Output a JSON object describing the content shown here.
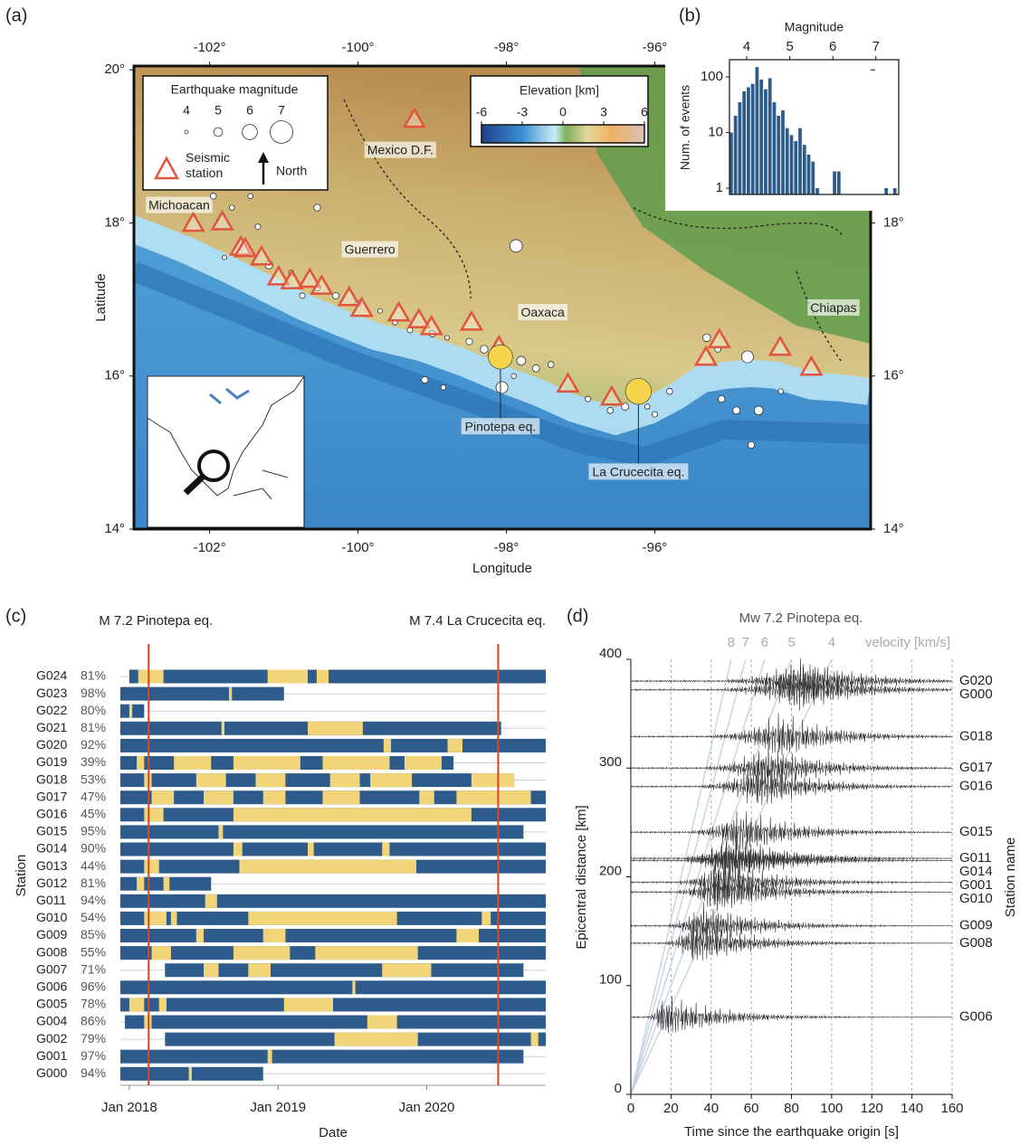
{
  "chart_data": [
    {
      "type": "map",
      "panel_label": "(a)",
      "xlabel": "Longitude",
      "ylabel": "Latitude",
      "xlim": [
        -103.02,
        -93.09
      ],
      "ylim": [
        14,
        20.05
      ],
      "xticks": [
        {
          "value": -102,
          "label": "-102°"
        },
        {
          "value": -100,
          "label": "-100°"
        },
        {
          "value": -98,
          "label": "-98°"
        },
        {
          "value": -96,
          "label": "-96°"
        }
      ],
      "yticks": [
        {
          "value": 14,
          "label": "14°"
        },
        {
          "value": 16,
          "label": "16°"
        },
        {
          "value": 18,
          "label": "18°"
        },
        {
          "value": 20,
          "label": "20°"
        }
      ],
      "stations": {
        "name": "Seismic station",
        "color": "#e0553b",
        "lon": [
          -99.24,
          -102.22,
          -101.83,
          -101.58,
          -101.52,
          -101.3,
          -101.07,
          -100.89,
          -100.65,
          -100.49,
          -100.12,
          -99.95,
          -99.45,
          -99.18,
          -99.01,
          -98.47,
          -98.1,
          -97.17,
          -96.58,
          -95.31,
          -95.13,
          -94.31,
          -93.89
        ],
        "lat": [
          19.34,
          17.98,
          18.0,
          17.67,
          17.65,
          17.54,
          17.28,
          17.23,
          17.25,
          17.16,
          17.01,
          16.87,
          16.81,
          16.72,
          16.63,
          16.69,
          16.37,
          15.88,
          15.71,
          16.23,
          16.46,
          16.36,
          16.1
        ]
      },
      "earthquakes": {
        "lon": [
          -101.95,
          -101.7,
          -101.35,
          -101.6,
          -101.8,
          -101.2,
          -100.9,
          -100.55,
          -100.3,
          -100.0,
          -99.7,
          -99.5,
          -99.3,
          -99.0,
          -98.8,
          -98.5,
          -98.3,
          -98.06,
          -97.8,
          -97.6,
          -97.4,
          -97.9,
          -98.85,
          -99.1,
          -96.9,
          -96.6,
          -96.4,
          -96.1,
          -95.8,
          -96.0,
          -95.3,
          -95.15,
          -94.75,
          -95.1,
          -94.9,
          -94.6,
          -94.3,
          -94.7,
          -97.87,
          -100.55,
          -101.45,
          -100.75
        ],
        "lat": [
          18.35,
          18.2,
          17.95,
          17.6,
          17.55,
          17.45,
          17.35,
          17.15,
          17.05,
          16.95,
          16.85,
          16.7,
          16.6,
          16.55,
          16.5,
          16.45,
          16.35,
          15.85,
          16.2,
          16.1,
          16.15,
          16.0,
          15.85,
          15.95,
          15.7,
          15.55,
          15.6,
          15.6,
          15.8,
          15.5,
          16.5,
          16.35,
          16.25,
          15.7,
          15.55,
          15.55,
          15.8,
          15.1,
          17.7,
          18.2,
          18.35,
          17.05
        ],
        "mag": [
          4.5,
          4.3,
          4.4,
          4.6,
          4.2,
          4.8,
          4.3,
          4.4,
          4.6,
          4.5,
          4.2,
          4.3,
          4.4,
          4.5,
          4.2,
          4.6,
          4.8,
          5.5,
          5.0,
          4.7,
          4.5,
          4.3,
          4.3,
          4.6,
          4.4,
          4.5,
          4.7,
          4.3,
          4.5,
          4.4,
          4.8,
          4.5,
          5.5,
          4.6,
          4.7,
          5.0,
          4.3,
          4.6,
          5.6,
          4.6,
          4.3,
          4.4
        ]
      },
      "mainshocks": [
        {
          "name": "Pinotepa eq.",
          "lon": -98.08,
          "lat": 16.25,
          "mag": 7.2,
          "color": "#f7d54a"
        },
        {
          "name": "La Crucecita eq.",
          "lon": -96.22,
          "lat": 15.8,
          "mag": 7.4,
          "color": "#f7d54a"
        }
      ],
      "places": [
        {
          "name": "Michoacan",
          "lon": -102.41,
          "lat": 18.22
        },
        {
          "name": "Guerrero",
          "lon": -99.84,
          "lat": 17.64
        },
        {
          "name": "Oaxaca",
          "lon": -97.51,
          "lat": 16.82
        },
        {
          "name": "Chiapas",
          "lon": -93.59,
          "lat": 16.88
        },
        {
          "name": "Mexico D.F.",
          "lon": -99.43,
          "lat": 18.94
        }
      ],
      "size_legend": {
        "title": "Earthquake magnitude",
        "values": [
          4,
          5,
          6,
          7
        ]
      },
      "north_label": "North",
      "colorbar": {
        "title": "Elevation [km]",
        "lim": [
          -6,
          6
        ],
        "ticks": [
          -6,
          -3,
          0,
          3,
          6
        ]
      }
    },
    {
      "type": "histogram",
      "panel_label": "(b)",
      "xlabel": "Magnitude",
      "ylabel": "Num. of events",
      "color": "#2c5b8c",
      "bins": [
        3.6,
        3.7,
        3.8,
        3.9,
        4.0,
        4.1,
        4.2,
        4.3,
        4.4,
        4.5,
        4.6,
        4.7,
        4.8,
        4.9,
        5.0,
        5.1,
        5.2,
        5.3,
        5.4,
        5.5,
        5.6,
        5.7,
        5.8,
        5.9,
        6.0,
        6.1,
        6.2,
        6.3,
        6.4,
        6.5,
        6.6,
        6.7,
        6.8,
        6.9,
        7.0,
        7.1,
        7.2,
        7.3,
        7.4,
        7.5
      ],
      "counts": [
        10,
        20,
        35,
        55,
        65,
        75,
        150,
        90,
        60,
        95,
        35,
        20,
        25,
        12,
        9,
        7,
        12,
        6,
        4,
        3,
        1,
        0,
        0,
        0,
        2,
        2,
        0,
        0,
        0,
        0,
        0,
        0,
        0,
        0,
        0,
        0,
        1,
        0,
        1
      ],
      "xlim": [
        3.6,
        7.53
      ],
      "xticks": [
        4,
        5,
        6,
        7
      ],
      "ylim": [
        0.77,
        204
      ],
      "yticks": [
        1,
        10,
        100
      ],
      "log_y": true
    },
    {
      "type": "timeline",
      "panel_label": "(c)",
      "xlabel": "Date",
      "ylabel": "Station",
      "color_available": "#2c5b8c",
      "color_gap": "#f2d479",
      "xlim": [
        2017.94,
        2020.8
      ],
      "xticks": [
        {
          "value": 2018,
          "label": "Jan 2018"
        },
        {
          "value": 2019,
          "label": "Jan 2019"
        },
        {
          "value": 2020,
          "label": "Jan 2020"
        }
      ],
      "events": [
        {
          "label": "M 7.2 Pinotepa eq.",
          "x": 2018.13,
          "color": "#d9472b"
        },
        {
          "label": "M 7.4 La Crucecita eq.",
          "x": 2020.48,
          "color": "#d9472b"
        }
      ],
      "rows": [
        {
          "name": "G024",
          "percent": 81,
          "percent_label": "81%",
          "start": 2018.0,
          "end": 2020.8,
          "gaps": [
            [
              2018.06,
              2018.23
            ],
            [
              2018.93,
              2019.2
            ],
            [
              2019.26,
              2019.34
            ]
          ]
        },
        {
          "name": "G023",
          "percent": 98,
          "percent_label": "98%",
          "start": 2017.94,
          "end": 2019.04,
          "gaps": [
            [
              2018.67,
              2018.69
            ]
          ]
        },
        {
          "name": "G022",
          "percent": 80,
          "percent_label": "80%",
          "start": 2017.94,
          "end": 2018.1,
          "gaps": [
            [
              2018.0,
              2018.02
            ]
          ]
        },
        {
          "name": "G021",
          "percent": 81,
          "percent_label": "81%",
          "start": 2017.94,
          "end": 2020.5,
          "gaps": [
            [
              2018.62,
              2018.64
            ],
            [
              2019.2,
              2019.57
            ]
          ]
        },
        {
          "name": "G020",
          "percent": 92,
          "percent_label": "92%",
          "start": 2017.94,
          "end": 2020.8,
          "gaps": [
            [
              2019.71,
              2019.76
            ],
            [
              2020.14,
              2020.24
            ]
          ]
        },
        {
          "name": "G019",
          "percent": 39,
          "percent_label": "39%",
          "start": 2017.94,
          "end": 2020.18,
          "gaps": [
            [
              2018.05,
              2018.1
            ],
            [
              2018.3,
              2018.55
            ],
            [
              2018.7,
              2019.15
            ],
            [
              2019.3,
              2019.75
            ],
            [
              2019.85,
              2020.1
            ]
          ]
        },
        {
          "name": "G018",
          "percent": 53,
          "percent_label": "53%",
          "start": 2017.94,
          "end": 2020.59,
          "gaps": [
            [
              2018.1,
              2018.15
            ],
            [
              2018.45,
              2018.65
            ],
            [
              2018.85,
              2019.05
            ],
            [
              2019.35,
              2019.55
            ],
            [
              2019.62,
              2019.9
            ],
            [
              2020.3,
              2020.59
            ]
          ]
        },
        {
          "name": "G017",
          "percent": 47,
          "percent_label": "47%",
          "start": 2017.94,
          "end": 2020.8,
          "gaps": [
            [
              2018.15,
              2018.3
            ],
            [
              2018.5,
              2018.7
            ],
            [
              2018.9,
              2019.05
            ],
            [
              2019.3,
              2019.55
            ],
            [
              2019.95,
              2020.05
            ],
            [
              2020.2,
              2020.7
            ]
          ]
        },
        {
          "name": "G016",
          "percent": 45,
          "percent_label": "45%",
          "start": 2017.94,
          "end": 2020.8,
          "gaps": [
            [
              2018.1,
              2018.23
            ],
            [
              2018.7,
              2020.3
            ]
          ]
        },
        {
          "name": "G015",
          "percent": 95,
          "percent_label": "95%",
          "start": 2017.94,
          "end": 2020.65,
          "gaps": [
            [
              2018.6,
              2018.63
            ]
          ]
        },
        {
          "name": "G014",
          "percent": 90,
          "percent_label": "90%",
          "start": 2017.94,
          "end": 2020.8,
          "gaps": [
            [
              2018.7,
              2018.76
            ],
            [
              2019.2,
              2019.24
            ],
            [
              2019.7,
              2019.75
            ]
          ]
        },
        {
          "name": "G013",
          "percent": 44,
          "percent_label": "44%",
          "start": 2017.94,
          "end": 2020.8,
          "gaps": [
            [
              2018.1,
              2018.2
            ],
            [
              2018.74,
              2019.93
            ]
          ]
        },
        {
          "name": "G012",
          "percent": 81,
          "percent_label": "81%",
          "start": 2017.94,
          "end": 2018.55,
          "gaps": [
            [
              2018.05,
              2018.1
            ],
            [
              2018.23,
              2018.27
            ]
          ]
        },
        {
          "name": "G011",
          "percent": 94,
          "percent_label": "94%",
          "start": 2017.94,
          "end": 2020.8,
          "gaps": [
            [
              2018.51,
              2018.59
            ]
          ]
        },
        {
          "name": "G010",
          "percent": 54,
          "percent_label": "54%",
          "start": 2017.94,
          "end": 2020.8,
          "gaps": [
            [
              2018.1,
              2018.25
            ],
            [
              2018.28,
              2018.32
            ],
            [
              2018.8,
              2019.8
            ],
            [
              2020.37,
              2020.43
            ]
          ]
        },
        {
          "name": "G009",
          "percent": 85,
          "percent_label": "85%",
          "start": 2017.94,
          "end": 2020.8,
          "gaps": [
            [
              2018.45,
              2018.5
            ],
            [
              2018.9,
              2019.05
            ],
            [
              2020.2,
              2020.35
            ]
          ]
        },
        {
          "name": "G008",
          "percent": 55,
          "percent_label": "55%",
          "start": 2017.94,
          "end": 2020.8,
          "gaps": [
            [
              2018.15,
              2018.28
            ],
            [
              2018.7,
              2019.08
            ],
            [
              2019.25,
              2019.94
            ]
          ]
        },
        {
          "name": "G007",
          "percent": 71,
          "percent_label": "71%",
          "start": 2018.24,
          "end": 2020.65,
          "gaps": [
            [
              2018.5,
              2018.6
            ],
            [
              2018.8,
              2018.95
            ],
            [
              2019.7,
              2020.03
            ]
          ]
        },
        {
          "name": "G006",
          "percent": 96,
          "percent_label": "96%",
          "start": 2017.94,
          "end": 2020.8,
          "gaps": [
            [
              2019.5,
              2019.52
            ]
          ]
        },
        {
          "name": "G005",
          "percent": 78,
          "percent_label": "78%",
          "start": 2017.94,
          "end": 2020.8,
          "gaps": [
            [
              2018.0,
              2018.1
            ],
            [
              2018.2,
              2018.25
            ],
            [
              2019.04,
              2019.37
            ]
          ]
        },
        {
          "name": "G004",
          "percent": 86,
          "percent_label": "86%",
          "start": 2017.97,
          "end": 2020.8,
          "gaps": [
            [
              2018.1,
              2018.15
            ],
            [
              2019.6,
              2019.8
            ]
          ]
        },
        {
          "name": "G002",
          "percent": 79,
          "percent_label": "79%",
          "start": 2018.24,
          "end": 2020.8,
          "gaps": [
            [
              2019.38,
              2019.94
            ],
            [
              2020.7,
              2020.75
            ]
          ]
        },
        {
          "name": "G001",
          "percent": 97,
          "percent_label": "97%",
          "start": 2017.94,
          "end": 2020.65,
          "gaps": [
            [
              2018.93,
              2018.96
            ]
          ]
        },
        {
          "name": "G000",
          "percent": 94,
          "percent_label": "94%",
          "start": 2017.94,
          "end": 2018.9,
          "gaps": [
            [
              2018.4,
              2018.42
            ]
          ]
        }
      ]
    },
    {
      "type": "record_section",
      "panel_label": "(d)",
      "title": "Mw 7.2 Pinotepa eq.",
      "xlabel": "Time since the earthquake origin [s]",
      "ylabel": "Epicentral distance [km]",
      "y2label": "Station name",
      "xlim": [
        0,
        160
      ],
      "xticks": [
        0,
        20,
        40,
        60,
        80,
        100,
        120,
        140,
        160
      ],
      "ylim": [
        0,
        400
      ],
      "yticks": [
        0,
        100,
        200,
        300,
        400
      ],
      "grid": true,
      "velocities": [
        8,
        7,
        6,
        5,
        4
      ],
      "velocity_label": "velocity [km/s]",
      "velocity_color": "#c9d4e4",
      "trace_color": "#333333",
      "traces": [
        {
          "name": "G020",
          "distance": 380
        },
        {
          "name": "G000",
          "distance": 372
        },
        {
          "name": "G018",
          "distance": 329
        },
        {
          "name": "G017",
          "distance": 300
        },
        {
          "name": "G016",
          "distance": 283
        },
        {
          "name": "G015",
          "distance": 241
        },
        {
          "name": "G011",
          "distance": 217
        },
        {
          "name": "G014",
          "distance": 215
        },
        {
          "name": "G001",
          "distance": 195
        },
        {
          "name": "G010",
          "distance": 186
        },
        {
          "name": "G009",
          "distance": 155
        },
        {
          "name": "G008",
          "distance": 139
        },
        {
          "name": "G006",
          "distance": 71
        }
      ]
    }
  ]
}
